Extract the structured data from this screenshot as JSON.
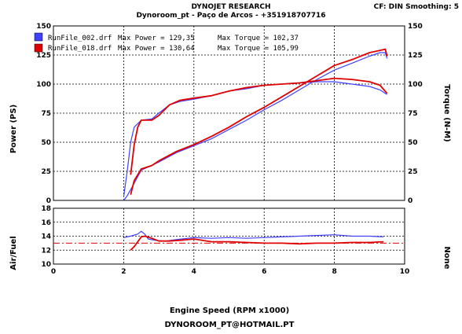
{
  "header": {
    "title": "DYNOJET RESEARCH",
    "subtitle": "Dynoroom_pt - Paço de Arcos - +351918707716",
    "settings": "CF: DIN  Smoothing: 5"
  },
  "footer": {
    "xlabel": "Engine Speed (RPM x1000)",
    "email": "DYNOROOM_PT@HOTMAIL.PT"
  },
  "colors": {
    "run1": "#4040ff",
    "run2": "#e00000",
    "grid": "#000000"
  },
  "legend": [
    {
      "file": "RunFile_002.drf",
      "max_power": "Max Power = 129,35",
      "max_torque": "Max Torque = 102,37",
      "color": "#4040ff"
    },
    {
      "file": "RunFile_018.drf",
      "max_power": "Max Power = 130,64",
      "max_torque": "Max Torque = 105,99",
      "color": "#e00000"
    }
  ],
  "chart_data": [
    {
      "type": "line",
      "ylabel": "Power (PS)",
      "ylabel_right": "Torque (N-M)",
      "xlim": [
        0,
        10
      ],
      "ylim": [
        0,
        150
      ],
      "xticks": [
        0,
        2,
        4,
        6,
        8,
        10
      ],
      "yticks": [
        0,
        25,
        50,
        75,
        100,
        125,
        150
      ],
      "ytick_labels": [
        "0",
        "25",
        "50",
        "75",
        "100",
        "125",
        "150"
      ],
      "grid": true,
      "series": [
        {
          "name": "RunFile_002.drf",
          "quantity": "power",
          "color": "#4040ff",
          "x": [
            2.0,
            2.1,
            2.25,
            2.5,
            2.8,
            3.0,
            3.5,
            4.0,
            4.5,
            5.0,
            5.5,
            6.0,
            6.5,
            7.0,
            7.5,
            8.0,
            8.5,
            9.0,
            9.3,
            9.45,
            9.5
          ],
          "y": [
            0,
            4,
            12,
            26,
            30,
            33,
            41,
            47,
            53,
            61,
            69,
            78,
            86,
            95,
            104,
            112,
            118,
            124,
            127,
            127,
            122
          ]
        },
        {
          "name": "RunFile_018.drf",
          "quantity": "power",
          "color": "#e00000",
          "x": [
            2.2,
            2.3,
            2.5,
            2.8,
            3.0,
            3.5,
            4.0,
            4.5,
            5.0,
            5.5,
            6.0,
            6.5,
            7.0,
            7.5,
            8.0,
            8.5,
            9.0,
            9.3,
            9.45,
            9.5
          ],
          "y": [
            5,
            17,
            27,
            30,
            34,
            42,
            48,
            55,
            63,
            72,
            80,
            89,
            98,
            107,
            116,
            121,
            127,
            129,
            130,
            124
          ]
        },
        {
          "name": "RunFile_002.drf",
          "quantity": "torque",
          "color": "#4040ff",
          "x": [
            2.0,
            2.1,
            2.2,
            2.3,
            2.5,
            2.8,
            3.0,
            3.3,
            3.6,
            4.0,
            4.5,
            5.0,
            5.5,
            6.0,
            6.5,
            7.0,
            7.5,
            8.0,
            8.5,
            9.0,
            9.3,
            9.5
          ],
          "y": [
            3,
            25,
            50,
            63,
            69,
            70,
            75,
            82,
            85,
            87,
            90,
            94,
            96,
            99,
            100,
            101,
            102,
            102,
            100,
            98,
            95,
            91
          ]
        },
        {
          "name": "RunFile_018.drf",
          "quantity": "torque",
          "color": "#e00000",
          "x": [
            2.2,
            2.3,
            2.4,
            2.5,
            2.8,
            3.0,
            3.3,
            3.6,
            4.0,
            4.5,
            5.0,
            5.5,
            6.0,
            6.5,
            7.0,
            7.5,
            8.0,
            8.5,
            9.0,
            9.3,
            9.5
          ],
          "y": [
            22,
            48,
            63,
            69,
            69,
            73,
            82,
            86,
            88,
            90,
            94,
            97,
            99,
            100,
            101,
            103,
            105,
            104,
            102,
            99,
            92
          ]
        }
      ]
    },
    {
      "type": "line",
      "ylabel": "Air/Fuel",
      "ylabel_right": "None",
      "xlabel": "Engine Speed (RPM x1000)",
      "xlim": [
        0,
        10
      ],
      "ylim": [
        10,
        18
      ],
      "xticks": [
        0,
        2,
        4,
        6,
        8,
        10
      ],
      "yticks": [
        10,
        12,
        14,
        16,
        18
      ],
      "reference_line": 13.0,
      "grid": true,
      "series": [
        {
          "name": "RunFile_002.drf",
          "quantity": "air_fuel",
          "color": "#4040ff",
          "x": [
            2.0,
            2.2,
            2.4,
            2.5,
            2.6,
            2.7,
            2.9,
            3.2,
            3.5,
            4.0,
            4.5,
            5.0,
            5.5,
            6.0,
            6.5,
            7.0,
            7.5,
            8.0,
            8.5,
            9.0,
            9.4
          ],
          "y": [
            13.8,
            14.0,
            14.3,
            14.7,
            14.3,
            13.6,
            13.4,
            13.3,
            13.5,
            13.8,
            13.7,
            13.8,
            13.7,
            13.8,
            13.9,
            14.0,
            14.1,
            14.2,
            14.0,
            14.0,
            13.9
          ]
        },
        {
          "name": "RunFile_018.drf",
          "quantity": "air_fuel",
          "color": "#e00000",
          "x": [
            2.2,
            2.3,
            2.4,
            2.5,
            2.6,
            2.8,
            3.0,
            3.3,
            3.6,
            4.0,
            4.5,
            5.0,
            5.5,
            6.0,
            6.5,
            7.0,
            7.5,
            8.0,
            8.5,
            9.0,
            9.4
          ],
          "y": [
            12.0,
            12.5,
            13.2,
            13.9,
            14.0,
            13.7,
            13.3,
            13.3,
            13.4,
            13.6,
            13.2,
            13.2,
            13.1,
            13.0,
            13.0,
            12.9,
            13.0,
            13.0,
            13.1,
            13.1,
            13.2
          ]
        }
      ]
    }
  ]
}
